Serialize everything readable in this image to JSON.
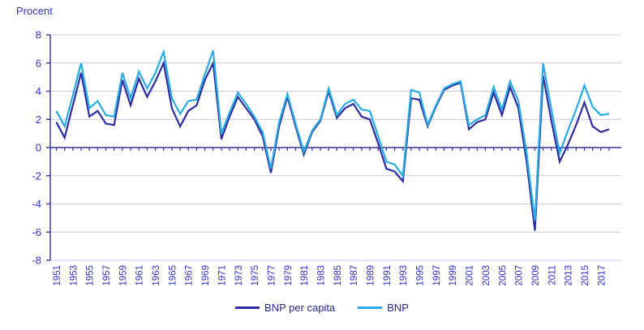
{
  "chart_data": {
    "type": "line",
    "title": "",
    "ylabel": "Procent",
    "ylim": [
      -8,
      8
    ],
    "ytick_step": 2,
    "ytick_labels": [
      "8",
      "6",
      "4",
      "2",
      "0",
      "-2",
      "-4",
      "-6",
      "-8"
    ],
    "grid": true,
    "legend_position": "bottom",
    "x_start": 1951,
    "x_end": 2018,
    "xtick_labels": [
      "1951",
      "1953",
      "1955",
      "1957",
      "1959",
      "1961",
      "1963",
      "1965",
      "1967",
      "1969",
      "1971",
      "1973",
      "1975",
      "1977",
      "1979",
      "1981",
      "1983",
      "1985",
      "1987",
      "1989",
      "1991",
      "1993",
      "1995",
      "1997",
      "1999",
      "2001",
      "2003",
      "2005",
      "2007",
      "2009",
      "2011",
      "2013",
      "2015",
      "2017"
    ],
    "years": [
      1951,
      1952,
      1953,
      1954,
      1955,
      1956,
      1957,
      1958,
      1959,
      1960,
      1961,
      1962,
      1963,
      1964,
      1965,
      1966,
      1967,
      1968,
      1969,
      1970,
      1971,
      1972,
      1973,
      1974,
      1975,
      1976,
      1977,
      1978,
      1979,
      1980,
      1981,
      1982,
      1983,
      1984,
      1985,
      1986,
      1987,
      1988,
      1989,
      1990,
      1991,
      1992,
      1993,
      1994,
      1995,
      1996,
      1997,
      1998,
      1999,
      2000,
      2001,
      2002,
      2003,
      2004,
      2005,
      2006,
      2007,
      2008,
      2009,
      2010,
      2011,
      2012,
      2013,
      2014,
      2015,
      2016,
      2017,
      2018
    ],
    "series": [
      {
        "name": "BNP per capita",
        "color": "#2d2da1",
        "values": [
          1.8,
          0.7,
          3.0,
          5.3,
          2.2,
          2.6,
          1.7,
          1.6,
          4.8,
          3.0,
          4.9,
          3.6,
          4.7,
          6.0,
          2.8,
          1.5,
          2.6,
          3.0,
          4.8,
          6.0,
          0.6,
          2.2,
          3.6,
          2.8,
          2.0,
          0.8,
          -1.8,
          1.5,
          3.6,
          1.5,
          -0.5,
          1.1,
          1.9,
          4.0,
          2.1,
          2.8,
          3.1,
          2.2,
          2.0,
          0.3,
          -1.5,
          -1.7,
          -2.4,
          3.5,
          3.4,
          1.5,
          2.9,
          4.1,
          4.4,
          4.6,
          1.3,
          1.8,
          2.0,
          3.9,
          2.3,
          4.3,
          2.8,
          -1.0,
          -5.9,
          5.1,
          1.9,
          -1.0,
          0.2,
          1.6,
          3.2,
          1.5,
          1.1,
          1.3
        ]
      },
      {
        "name": "BNP",
        "color": "#29ace3",
        "values": [
          2.6,
          1.5,
          3.7,
          6.0,
          2.8,
          3.3,
          2.3,
          2.2,
          5.3,
          3.5,
          5.4,
          4.2,
          5.3,
          6.8,
          3.5,
          2.4,
          3.3,
          3.4,
          5.2,
          6.9,
          1.0,
          2.5,
          3.9,
          3.1,
          2.2,
          1.1,
          -1.5,
          1.8,
          3.8,
          1.7,
          -0.3,
          1.2,
          2.0,
          4.2,
          2.3,
          3.1,
          3.4,
          2.7,
          2.6,
          0.8,
          -1.0,
          -1.2,
          -2.0,
          4.1,
          3.9,
          1.6,
          3.0,
          4.2,
          4.5,
          4.7,
          1.6,
          2.0,
          2.3,
          4.3,
          2.7,
          4.7,
          3.3,
          -0.4,
          -5.2,
          6.0,
          2.7,
          -0.4,
          1.2,
          2.7,
          4.4,
          2.9,
          2.3,
          2.4
        ]
      }
    ],
    "colors": {
      "grid": "#c9c9e0",
      "axis": "#333399",
      "tick_label": "#3232cd",
      "legend_text": "#26268f"
    }
  }
}
